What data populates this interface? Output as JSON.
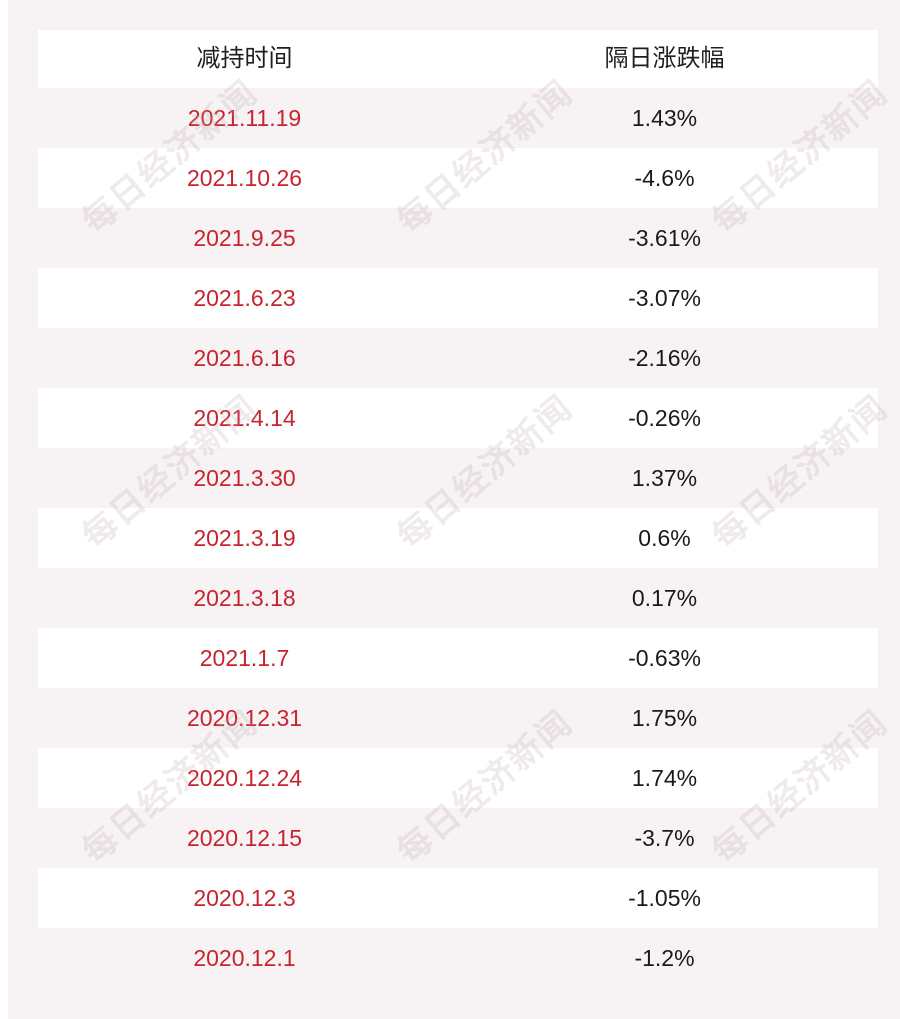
{
  "table": {
    "headers": [
      "减持时间",
      "隔日涨跌幅"
    ],
    "rows": [
      {
        "date": "2021.11.19",
        "change": "1.43%"
      },
      {
        "date": "2021.10.26",
        "change": "-4.6%"
      },
      {
        "date": "2021.9.25",
        "change": "-3.61%"
      },
      {
        "date": "2021.6.23",
        "change": "-3.07%"
      },
      {
        "date": "2021.6.16",
        "change": "-2.16%"
      },
      {
        "date": "2021.4.14",
        "change": "-0.26%"
      },
      {
        "date": "2021.3.30",
        "change": "1.37%"
      },
      {
        "date": "2021.3.19",
        "change": "0.6%"
      },
      {
        "date": "2021.3.18",
        "change": "0.17%"
      },
      {
        "date": "2021.1.7",
        "change": "-0.63%"
      },
      {
        "date": "2020.12.31",
        "change": "1.75%"
      },
      {
        "date": "2020.12.24",
        "change": "1.74%"
      },
      {
        "date": "2020.12.15",
        "change": "-3.7%"
      },
      {
        "date": "2020.12.3",
        "change": "-1.05%"
      },
      {
        "date": "2020.12.1",
        "change": "-1.2%"
      }
    ]
  },
  "watermark": "每日经济新闻",
  "colors": {
    "date_text": "#c8242f",
    "change_text": "#1a1a1a",
    "row_shade": "#f7f3f4",
    "row_white": "#ffffff"
  }
}
